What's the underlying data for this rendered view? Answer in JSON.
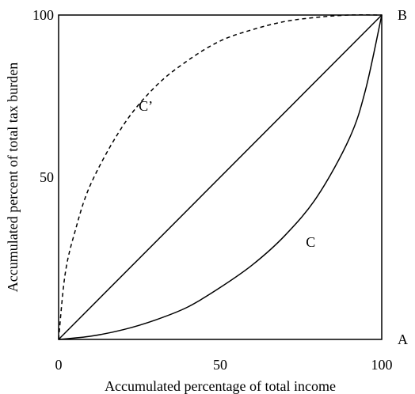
{
  "chart_data": {
    "type": "line",
    "title": "",
    "xlabel": "Accumulated percentage of total income",
    "ylabel": "Accumulated percent of total tax burden",
    "xlim": [
      0,
      100
    ],
    "ylim": [
      0,
      100
    ],
    "x_ticks": [
      "0",
      "50",
      "100"
    ],
    "y_ticks": [
      "50",
      "100"
    ],
    "grid": false,
    "legend": "none",
    "series": [
      {
        "label": "",
        "style": "solid",
        "x": [
          0,
          100
        ],
        "y": [
          0,
          100
        ]
      },
      {
        "label": "C",
        "style": "solid",
        "x": [
          0,
          10,
          20,
          30,
          40,
          50,
          60,
          70,
          80,
          90,
          95,
          100
        ],
        "y": [
          0,
          1,
          3,
          6,
          10,
          16,
          23,
          32,
          44,
          62,
          77,
          100
        ]
      },
      {
        "label": "C’",
        "style": "dashed",
        "x": [
          0,
          2,
          5,
          10,
          20,
          30,
          40,
          50,
          60,
          70,
          80,
          90,
          100
        ],
        "y": [
          0,
          20,
          33,
          48,
          66,
          78,
          86,
          92,
          95.5,
          98,
          99.3,
          100,
          100
        ]
      }
    ],
    "annotations": [
      {
        "text": "C",
        "x": 78,
        "y": 30
      },
      {
        "text": "C’",
        "x": 27,
        "y": 72
      },
      {
        "text": "A",
        "x": 100,
        "y": 0
      },
      {
        "text": "B",
        "x": 100,
        "y": 100
      }
    ],
    "colors": {
      "line": "#000000",
      "background": "#ffffff"
    }
  }
}
